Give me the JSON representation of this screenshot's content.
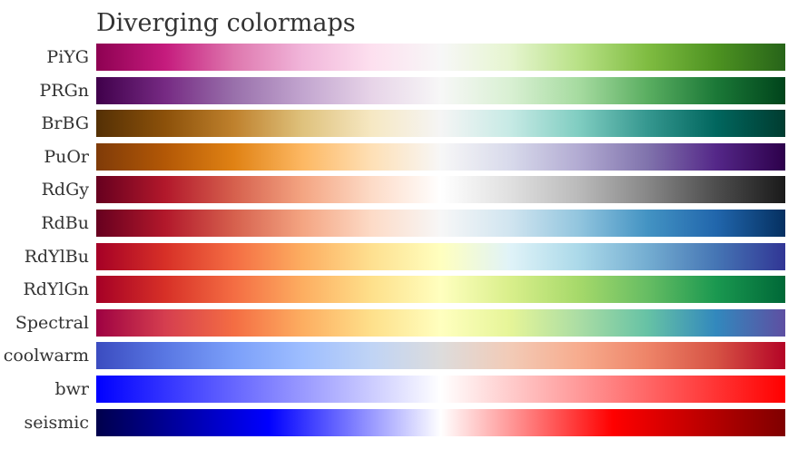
{
  "chart_data": {
    "type": "heatmap",
    "title": "Diverging colormaps",
    "colormaps": [
      {
        "name": "PiYG",
        "stops": [
          "#8e0152",
          "#c51b7d",
          "#de77ae",
          "#f1b6da",
          "#fde0ef",
          "#f7f7f7",
          "#e6f5d0",
          "#b8e186",
          "#7fbc41",
          "#4d9221",
          "#276419"
        ]
      },
      {
        "name": "PRGn",
        "stops": [
          "#40004b",
          "#762a83",
          "#9970ab",
          "#c2a5cf",
          "#e7d4e8",
          "#f7f7f7",
          "#d9f0d3",
          "#a6dba0",
          "#5aae61",
          "#1b7837",
          "#00441b"
        ]
      },
      {
        "name": "BrBG",
        "stops": [
          "#543005",
          "#8c510a",
          "#bf812d",
          "#dfc27d",
          "#f6e8c3",
          "#f5f5f5",
          "#c7eae5",
          "#80cdc1",
          "#35978f",
          "#01665e",
          "#003c30"
        ]
      },
      {
        "name": "PuOr",
        "stops": [
          "#7f3b08",
          "#b35806",
          "#e08214",
          "#fdb863",
          "#fee0b6",
          "#f7f7f7",
          "#d8daeb",
          "#b2abd2",
          "#8073ac",
          "#542788",
          "#2d004b"
        ]
      },
      {
        "name": "RdGy",
        "stops": [
          "#67001f",
          "#b2182b",
          "#d6604d",
          "#f4a582",
          "#fddbc7",
          "#ffffff",
          "#e0e0e0",
          "#bababa",
          "#878787",
          "#4d4d4d",
          "#1a1a1a"
        ]
      },
      {
        "name": "RdBu",
        "stops": [
          "#67001f",
          "#b2182b",
          "#d6604d",
          "#f4a582",
          "#fddbc7",
          "#f7f7f7",
          "#d1e5f0",
          "#92c5de",
          "#4393c3",
          "#2166ac",
          "#053061"
        ]
      },
      {
        "name": "RdYlBu",
        "stops": [
          "#a50026",
          "#d73027",
          "#f46d43",
          "#fdae61",
          "#fee090",
          "#ffffbf",
          "#e0f3f8",
          "#abd9e9",
          "#74add1",
          "#4575b4",
          "#313695"
        ]
      },
      {
        "name": "RdYlGn",
        "stops": [
          "#a50026",
          "#d73027",
          "#f46d43",
          "#fdae61",
          "#fee08b",
          "#ffffbf",
          "#d9ef8b",
          "#a6d96a",
          "#66bd63",
          "#1a9850",
          "#006837"
        ]
      },
      {
        "name": "Spectral",
        "stops": [
          "#9e0142",
          "#d53e4f",
          "#f46d43",
          "#fdae61",
          "#fee08b",
          "#ffffbf",
          "#e6f598",
          "#abdda4",
          "#66c2a5",
          "#3288bd",
          "#5e4fa2"
        ]
      },
      {
        "name": "coolwarm",
        "stops": [
          "#3b4cc0",
          "#5977e3",
          "#7b9ff9",
          "#9ebeff",
          "#c0d4f5",
          "#dddcdc",
          "#f2cbb7",
          "#f7ac8e",
          "#ee8468",
          "#d65244",
          "#b40426"
        ]
      },
      {
        "name": "bwr",
        "stops": [
          "#0000ff",
          "#ffffff",
          "#ff0000"
        ]
      },
      {
        "name": "seismic",
        "stops": [
          "#00004c",
          "#0000ff",
          "#ffffff",
          "#ff0000",
          "#7f0000"
        ]
      }
    ]
  }
}
